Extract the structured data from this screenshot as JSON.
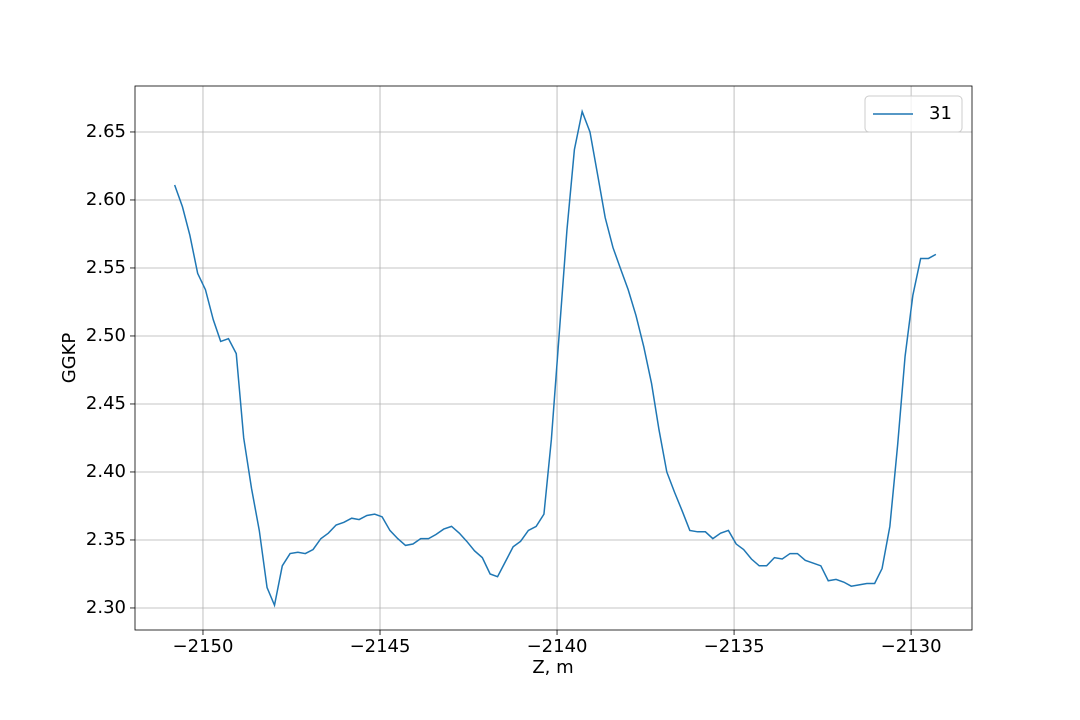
{
  "chart_data": {
    "type": "line",
    "xlabel": "Z, m",
    "ylabel": "GGKP",
    "x": [
      -2150.8,
      -2150.58,
      -2150.37,
      -2150.15,
      -2149.93,
      -2149.71,
      -2149.5,
      -2149.28,
      -2149.06,
      -2148.85,
      -2148.63,
      -2148.41,
      -2148.19,
      -2147.98,
      -2147.76,
      -2147.54,
      -2147.32,
      -2147.11,
      -2146.89,
      -2146.67,
      -2146.46,
      -2146.24,
      -2146.02,
      -2145.8,
      -2145.59,
      -2145.37,
      -2145.15,
      -2144.94,
      -2144.72,
      -2144.5,
      -2144.28,
      -2144.07,
      -2143.85,
      -2143.63,
      -2143.42,
      -2143.2,
      -2142.98,
      -2142.76,
      -2142.55,
      -2142.33,
      -2142.11,
      -2141.89,
      -2141.68,
      -2141.46,
      -2141.24,
      -2141.03,
      -2140.81,
      -2140.59,
      -2140.37,
      -2140.16,
      -2139.94,
      -2139.72,
      -2139.51,
      -2139.29,
      -2139.07,
      -2138.85,
      -2138.64,
      -2138.42,
      -2138.2,
      -2137.99,
      -2137.77,
      -2137.55,
      -2137.33,
      -2137.12,
      -2136.9,
      -2136.68,
      -2136.46,
      -2136.25,
      -2136.03,
      -2135.81,
      -2135.6,
      -2135.38,
      -2135.16,
      -2134.94,
      -2134.73,
      -2134.51,
      -2134.29,
      -2134.08,
      -2133.86,
      -2133.64,
      -2133.42,
      -2133.21,
      -2132.99,
      -2132.77,
      -2132.55,
      -2132.34,
      -2132.12,
      -2131.9,
      -2131.69,
      -2131.47,
      -2131.25,
      -2131.03,
      -2130.82,
      -2130.6,
      -2130.38,
      -2130.17,
      -2129.95,
      -2129.73,
      -2129.51,
      -2129.3
    ],
    "series": [
      {
        "name": "31",
        "color": "#1f77b4",
        "values": [
          2.611,
          2.595,
          2.574,
          2.546,
          2.534,
          2.512,
          2.496,
          2.498,
          2.487,
          2.425,
          2.388,
          2.357,
          2.315,
          2.302,
          2.331,
          2.34,
          2.341,
          2.34,
          2.343,
          2.351,
          2.355,
          2.361,
          2.363,
          2.366,
          2.365,
          2.368,
          2.369,
          2.367,
          2.357,
          2.351,
          2.346,
          2.347,
          2.351,
          2.351,
          2.354,
          2.358,
          2.36,
          2.355,
          2.349,
          2.342,
          2.337,
          2.325,
          2.323,
          2.334,
          2.345,
          2.349,
          2.357,
          2.36,
          2.369,
          2.424,
          2.501,
          2.578,
          2.637,
          2.665,
          2.65,
          2.618,
          2.587,
          2.565,
          2.549,
          2.534,
          2.515,
          2.492,
          2.465,
          2.431,
          2.4,
          2.385,
          2.371,
          2.357,
          2.356,
          2.356,
          2.351,
          2.355,
          2.357,
          2.347,
          2.343,
          2.336,
          2.331,
          2.331,
          2.337,
          2.336,
          2.34,
          2.34,
          2.335,
          2.333,
          2.331,
          2.32,
          2.321,
          2.319,
          2.316,
          2.317,
          2.318,
          2.318,
          2.329,
          2.36,
          2.42,
          2.485,
          2.53,
          2.557,
          2.557,
          2.56
        ]
      }
    ],
    "xlim": [
      -2151.92,
      -2128.28
    ],
    "ylim": [
      2.2838,
      2.6838
    ],
    "xticks": [
      {
        "value": -2150,
        "label": "−2150"
      },
      {
        "value": -2145,
        "label": "−2145"
      },
      {
        "value": -2140,
        "label": "−2140"
      },
      {
        "value": -2135,
        "label": "−2135"
      },
      {
        "value": -2130,
        "label": "−2130"
      }
    ],
    "yticks": [
      {
        "value": 2.3,
        "label": "2.30"
      },
      {
        "value": 2.35,
        "label": "2.35"
      },
      {
        "value": 2.4,
        "label": "2.40"
      },
      {
        "value": 2.45,
        "label": "2.45"
      },
      {
        "value": 2.5,
        "label": "2.50"
      },
      {
        "value": 2.55,
        "label": "2.55"
      },
      {
        "value": 2.6,
        "label": "2.60"
      },
      {
        "value": 2.65,
        "label": "2.65"
      }
    ],
    "grid": true,
    "legend": "upper right"
  }
}
